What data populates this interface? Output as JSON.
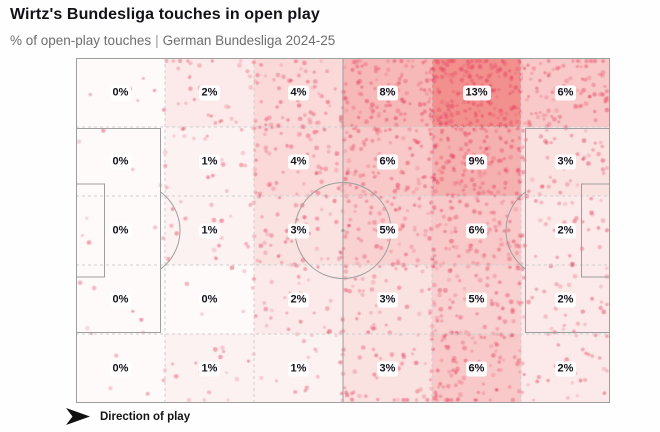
{
  "header": {
    "title": "Wirtz's Bundesliga touches in open play",
    "subtitle_metric": "% of open-play touches",
    "subtitle_separator": "|",
    "subtitle_competition": "German Bundesliga 2024-25"
  },
  "footer": {
    "direction_label": "Direction of play"
  },
  "chart_data": {
    "type": "heatmap",
    "title": "Wirtz's Bundesliga touches in open play",
    "subtitle": "% of open-play touches | German Bundesliga 2024-25",
    "unit": "%",
    "grid": {
      "rows": 5,
      "cols": 6
    },
    "cell_values": [
      [
        0,
        2,
        4,
        8,
        13,
        6
      ],
      [
        0,
        1,
        4,
        6,
        9,
        3
      ],
      [
        0,
        1,
        3,
        5,
        6,
        2
      ],
      [
        0,
        0,
        2,
        3,
        5,
        2
      ],
      [
        0,
        1,
        1,
        3,
        6,
        2
      ]
    ],
    "cell_labels": [
      [
        "0%",
        "2%",
        "4%",
        "8%",
        "13%",
        "6%"
      ],
      [
        "0%",
        "1%",
        "4%",
        "6%",
        "9%",
        "3%"
      ],
      [
        "0%",
        "1%",
        "3%",
        "5%",
        "6%",
        "2%"
      ],
      [
        "0%",
        "0%",
        "2%",
        "3%",
        "5%",
        "2%"
      ],
      [
        "0%",
        "1%",
        "1%",
        "3%",
        "6%",
        "2%"
      ]
    ],
    "value_max": 13,
    "overlay_scatter": "individual open-play touch locations shown as dots",
    "direction_of_play": "left-to-right",
    "legend_position": "none",
    "colors": {
      "heat_low": "#FDFAF9",
      "heat_high": "#F2908E",
      "dot": "#E6405F",
      "pitch_line": "#9E9E9E",
      "grid_line": "#CFCFCF",
      "label_bg": "#FFFFFF",
      "label_text": "#14141D",
      "title_text": "#121219",
      "subtitle_text": "#6E6E6E"
    }
  }
}
